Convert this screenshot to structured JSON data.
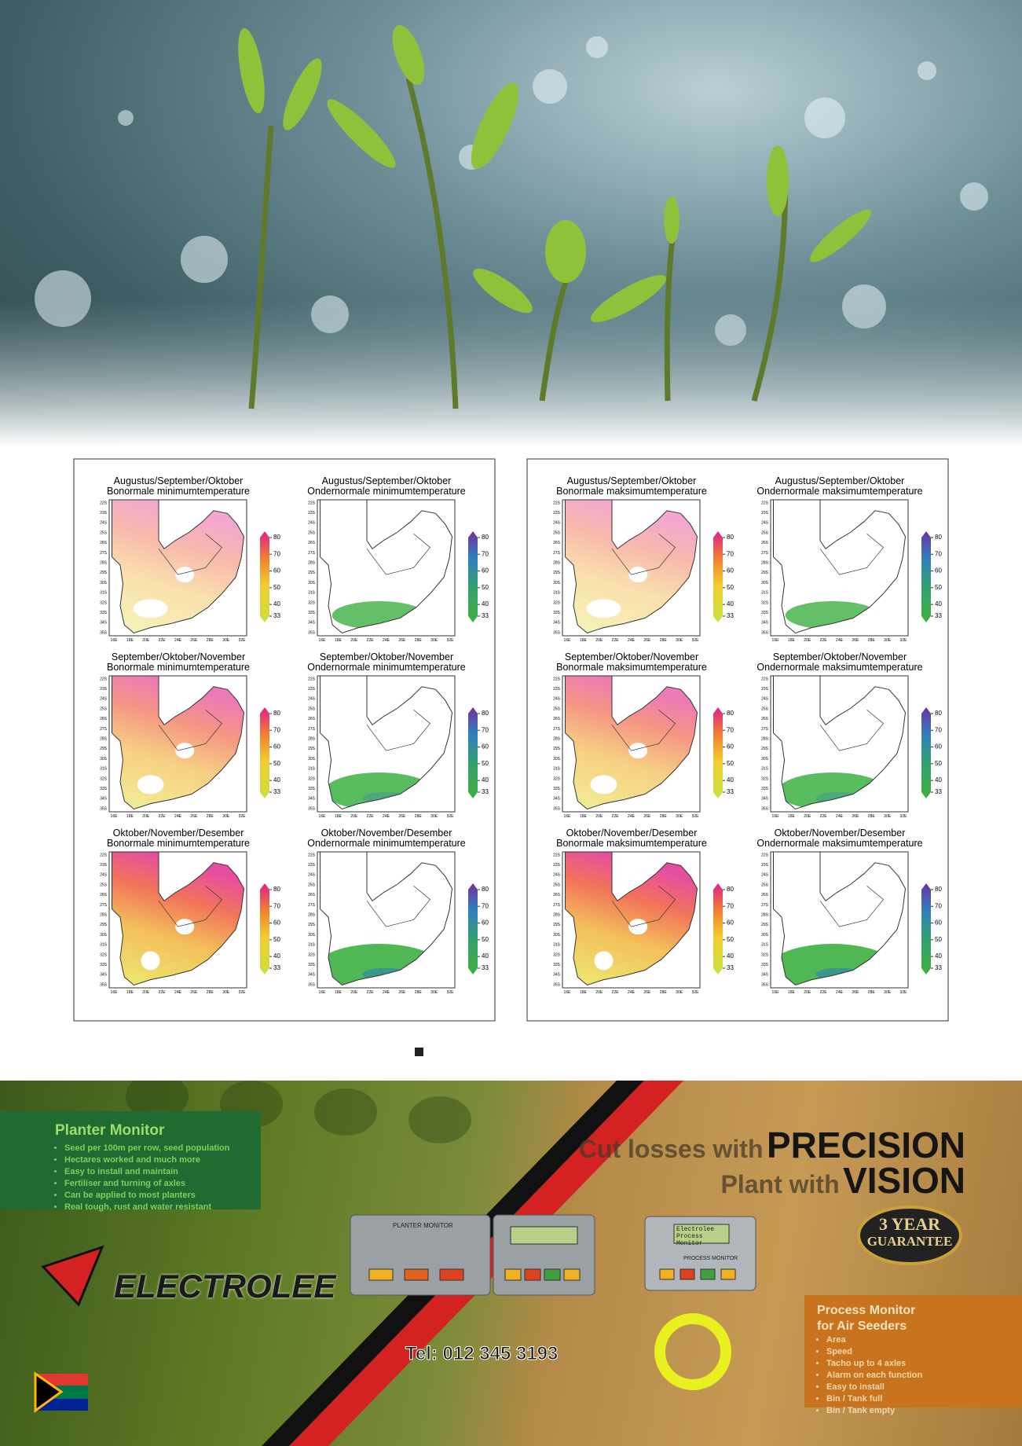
{
  "maps": {
    "panels": [
      {
        "plots": [
          {
            "title": "Augustus/September/Oktober",
            "subtitle": "Bonormale minimumtemperature"
          },
          {
            "title": "Augustus/September/Oktober",
            "subtitle": "Ondernormale minimumtemperature"
          },
          {
            "title": "September/Oktober/November",
            "subtitle": "Bonormale minimumtemperature"
          },
          {
            "title": "September/Oktober/November",
            "subtitle": "Ondernormale minimumtemperature"
          },
          {
            "title": "Oktober/November/Desember",
            "subtitle": "Bonormale minimumtemperature"
          },
          {
            "title": "Oktober/November/Desember",
            "subtitle": "Ondernormale minimumtemperature"
          }
        ]
      },
      {
        "plots": [
          {
            "title": "Augustus/September/Oktober",
            "subtitle": "Bonormale maksimumtemperature"
          },
          {
            "title": "Augustus/September/Oktober",
            "subtitle": "Ondernormale maksimumtemperature"
          },
          {
            "title": "September/Oktober/November",
            "subtitle": "Bonormale maksimumtemperature"
          },
          {
            "title": "September/Oktober/November",
            "subtitle": "Ondernormale maksimumtemperature"
          },
          {
            "title": "Oktober/November/Desember",
            "subtitle": "Bonormale maksimumtemperature"
          },
          {
            "title": "Oktober/November/Desember",
            "subtitle": "Ondernormale maksimumtemperature"
          }
        ]
      }
    ],
    "colorbar_ticks": [
      33,
      40,
      50,
      60,
      70,
      80
    ],
    "lat_labels": [
      "22S",
      "23S",
      "24S",
      "25S",
      "26S",
      "27S",
      "28S",
      "29S",
      "30S",
      "31S",
      "32S",
      "33S",
      "34S",
      "35S"
    ],
    "lon_labels": [
      "16E",
      "18E",
      "20E",
      "22E",
      "24E",
      "26E",
      "28E",
      "30E",
      "32E"
    ]
  },
  "ad": {
    "planter_monitor": {
      "title": "Planter Monitor",
      "items": [
        "Seed per 100m per row, seed population",
        "Hectares worked and much more",
        "Easy to install and maintain",
        "Fertiliser and turning of axles",
        "Can be applied to most planters",
        "Real tough, rust and water resistant"
      ]
    },
    "headline_1": {
      "lead": "Cut losses with",
      "emphasis": "PRECISION"
    },
    "headline_2": {
      "lead": "Plant with",
      "emphasis": "VISION"
    },
    "brand": "ELECTROLEE",
    "phone": "Tel: 012 345 3193",
    "guarantee": {
      "line1": "3 YEAR",
      "line2": "GUARANTEE"
    },
    "device_labels": {
      "planter": "PLANTER MONITOR",
      "process": "PROCESS MONITOR",
      "screen": "Electrolee Process Monitor"
    },
    "process_monitor": {
      "title_line1": "Process Monitor",
      "title_line2": "for Air Seeders",
      "items": [
        "Area",
        "Speed",
        "Tacho up to 4 axles",
        "Alarm on each function",
        "Easy to install",
        "Bin / Tank full",
        "Bin / Tank empty"
      ]
    }
  }
}
